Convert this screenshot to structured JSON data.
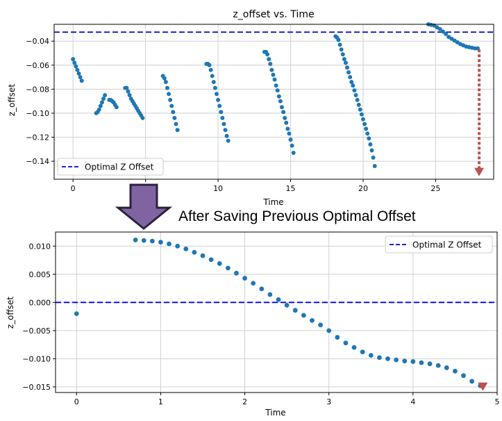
{
  "caption": "After Saving Previous Optimal Offset",
  "chart_data": [
    {
      "type": "scatter",
      "title": "z_offset vs. Time",
      "xlabel": "Time",
      "ylabel": "z_offset",
      "xlim": [
        -1.3,
        29.0
      ],
      "ylim": [
        -0.155,
        -0.026
      ],
      "xticks": [
        0,
        5,
        10,
        15,
        20,
        25
      ],
      "xtick_labels": [
        "0",
        "5",
        "10",
        "15",
        "20",
        "25"
      ],
      "yticks": [
        -0.04,
        -0.06,
        -0.08,
        -0.1,
        -0.12,
        -0.14
      ],
      "ytick_labels": [
        "−0.04",
        "−0.06",
        "−0.08",
        "−0.10",
        "−0.12",
        "−0.14"
      ],
      "grid": true,
      "legend_position": "lower-left",
      "optimal_line": {
        "name": "Optimal Z Offset",
        "y": -0.0325,
        "color": "#0000dd"
      },
      "point_color": "#1f77b4",
      "annotation_arrow": {
        "x": 28.0,
        "from_y": -0.047,
        "to_y": -0.1525,
        "color": "#c0504d"
      },
      "series": [
        {
          "x": [
            0.0,
            0.1,
            0.2,
            0.3,
            0.4,
            0.5,
            0.6
          ],
          "y": [
            -0.055,
            -0.058,
            -0.061,
            -0.064,
            -0.067,
            -0.07,
            -0.073
          ]
        },
        {
          "x": [
            1.6,
            1.7,
            1.8,
            1.9,
            2.0,
            2.1,
            2.2
          ],
          "y": [
            -0.1,
            -0.099,
            -0.097,
            -0.094,
            -0.091,
            -0.088,
            -0.085
          ]
        },
        {
          "x": [
            2.5,
            2.6,
            2.7,
            2.8,
            2.9,
            3.0
          ],
          "y": [
            -0.089,
            -0.089,
            -0.09,
            -0.091,
            -0.093,
            -0.095
          ]
        },
        {
          "x": [
            3.6,
            3.7,
            3.8,
            3.9,
            4.0,
            4.1,
            4.2,
            4.3,
            4.4,
            4.5,
            4.6,
            4.7,
            4.8
          ],
          "y": [
            -0.079,
            -0.079,
            -0.082,
            -0.085,
            -0.088,
            -0.09,
            -0.092,
            -0.094,
            -0.096,
            -0.098,
            -0.1,
            -0.102,
            -0.104
          ]
        },
        {
          "x": [
            6.2,
            6.3,
            6.4,
            6.5,
            6.6,
            6.7,
            6.8,
            6.9,
            7.0,
            7.1,
            7.2
          ],
          "y": [
            -0.069,
            -0.071,
            -0.074,
            -0.079,
            -0.084,
            -0.089,
            -0.094,
            -0.099,
            -0.104,
            -0.109,
            -0.114
          ]
        },
        {
          "x": [
            9.2,
            9.3,
            9.4,
            9.5,
            9.6,
            9.7,
            9.8,
            9.9,
            10.0,
            10.1,
            10.2,
            10.3,
            10.4,
            10.5,
            10.6,
            10.7
          ],
          "y": [
            -0.059,
            -0.059,
            -0.06,
            -0.064,
            -0.069,
            -0.074,
            -0.079,
            -0.084,
            -0.089,
            -0.094,
            -0.099,
            -0.104,
            -0.109,
            -0.114,
            -0.119,
            -0.123
          ]
        },
        {
          "x": [
            13.2,
            13.3,
            13.4,
            13.5,
            13.6,
            13.7,
            13.8,
            13.9,
            14.0,
            14.1,
            14.2,
            14.3,
            14.4,
            14.5,
            14.6,
            14.7,
            14.8,
            14.9,
            15.0,
            15.1,
            15.2
          ],
          "y": [
            -0.049,
            -0.049,
            -0.051,
            -0.055,
            -0.059,
            -0.064,
            -0.068,
            -0.072,
            -0.077,
            -0.081,
            -0.086,
            -0.09,
            -0.095,
            -0.099,
            -0.104,
            -0.108,
            -0.113,
            -0.117,
            -0.122,
            -0.127,
            -0.133
          ]
        },
        {
          "x": [
            18.1,
            18.2,
            18.3,
            18.4,
            18.5,
            18.6,
            18.7,
            18.8,
            18.9,
            19.0,
            19.1,
            19.2,
            19.3,
            19.4,
            19.5,
            19.6,
            19.7,
            19.8,
            19.9,
            20.0,
            20.1,
            20.2,
            20.3,
            20.4,
            20.5,
            20.6,
            20.7,
            20.8
          ],
          "y": [
            -0.036,
            -0.037,
            -0.039,
            -0.043,
            -0.047,
            -0.051,
            -0.055,
            -0.058,
            -0.062,
            -0.066,
            -0.07,
            -0.074,
            -0.077,
            -0.081,
            -0.085,
            -0.089,
            -0.093,
            -0.097,
            -0.101,
            -0.105,
            -0.109,
            -0.113,
            -0.117,
            -0.121,
            -0.126,
            -0.131,
            -0.137,
            -0.144
          ]
        },
        {
          "x": [
            24.5,
            24.7,
            24.9,
            25.1,
            25.3,
            25.5,
            25.7,
            25.9,
            26.1,
            26.3,
            26.5,
            26.7,
            26.9,
            27.1,
            27.3,
            27.5,
            27.7,
            27.9
          ],
          "y": [
            -0.026,
            -0.0265,
            -0.027,
            -0.0285,
            -0.03,
            -0.032,
            -0.034,
            -0.0365,
            -0.038,
            -0.0395,
            -0.041,
            -0.0425,
            -0.0435,
            -0.0445,
            -0.045,
            -0.0455,
            -0.046,
            -0.046
          ]
        }
      ]
    },
    {
      "type": "scatter",
      "title": "",
      "xlabel": "Time",
      "ylabel": "z_offset",
      "xlim": [
        -0.25,
        5.0
      ],
      "ylim": [
        -0.016,
        0.0125
      ],
      "xticks": [
        0,
        1,
        2,
        3,
        4,
        5
      ],
      "xtick_labels": [
        "0",
        "1",
        "2",
        "3",
        "4",
        "5"
      ],
      "yticks": [
        0.01,
        0.005,
        0.0,
        -0.005,
        -0.01,
        -0.015
      ],
      "ytick_labels": [
        "0.010",
        "0.005",
        "0.000",
        "−0.005",
        "−0.010",
        "−0.015"
      ],
      "grid": true,
      "legend_position": "top-right",
      "optimal_line": {
        "name": "Optimal Z Offset",
        "y": 0.0,
        "color": "#0000dd"
      },
      "point_color": "#1f77b4",
      "annotation_arrow": {
        "x": 4.83,
        "from_y": -0.0135,
        "to_y": -0.0157,
        "color": "#c0504d"
      },
      "series": [
        {
          "x": [
            0.0
          ],
          "y": [
            -0.002
          ]
        },
        {
          "x": [
            0.7,
            0.8,
            0.9,
            1.0,
            1.1,
            1.2,
            1.3,
            1.4,
            1.5,
            1.6,
            1.7,
            1.8,
            1.9,
            2.0,
            2.1,
            2.2,
            2.3,
            2.4,
            2.5,
            2.6,
            2.7,
            2.8,
            2.9,
            3.0,
            3.1,
            3.2,
            3.3,
            3.4,
            3.5,
            3.6,
            3.7,
            3.8,
            3.9,
            4.0,
            4.1,
            4.2,
            4.3,
            4.4,
            4.5,
            4.6,
            4.7,
            4.8
          ],
          "y": [
            0.0111,
            0.011,
            0.0109,
            0.0107,
            0.0104,
            0.01,
            0.0095,
            0.0089,
            0.0083,
            0.0076,
            0.0069,
            0.0061,
            0.0052,
            0.0043,
            0.0034,
            0.0024,
            0.0014,
            0.0005,
            -0.0005,
            -0.0014,
            -0.0023,
            -0.0032,
            -0.004,
            -0.005,
            -0.0062,
            -0.0072,
            -0.008,
            -0.0088,
            -0.0094,
            -0.0098,
            -0.01,
            -0.0102,
            -0.0104,
            -0.0105,
            -0.0107,
            -0.0109,
            -0.0112,
            -0.0116,
            -0.0122,
            -0.013,
            -0.014,
            -0.0148
          ]
        }
      ]
    }
  ],
  "arrow_color": "#8064a2"
}
